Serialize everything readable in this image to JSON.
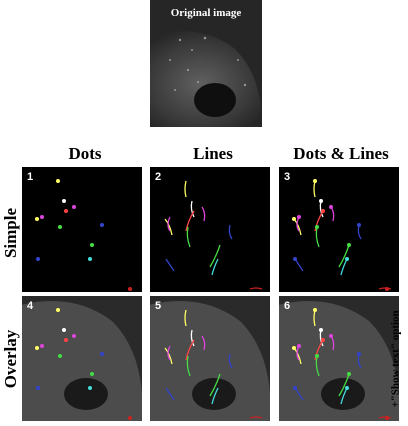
{
  "original_image": {
    "title": "Original image"
  },
  "columns": [
    "Dots",
    "Lines",
    "Dots & Lines"
  ],
  "rows": [
    "Simple",
    "Overlay"
  ],
  "panels": [
    {
      "number": "1",
      "mode": "dots",
      "overlay": false
    },
    {
      "number": "2",
      "mode": "lines",
      "overlay": false
    },
    {
      "number": "3",
      "mode": "both",
      "overlay": false
    },
    {
      "number": "4",
      "mode": "dots",
      "overlay": true
    },
    {
      "number": "5",
      "mode": "lines",
      "overlay": true
    },
    {
      "number": "6",
      "mode": "both",
      "overlay": true
    }
  ],
  "side_note": "+\"Show text\" option",
  "colors": {
    "background": "#000000",
    "track_colors": [
      "#ffff66",
      "#ffffff",
      "#ff4444",
      "#dd44dd",
      "#44dd44",
      "#3344cc",
      "#44dddd",
      "#ff9933",
      "#cc2222"
    ]
  }
}
